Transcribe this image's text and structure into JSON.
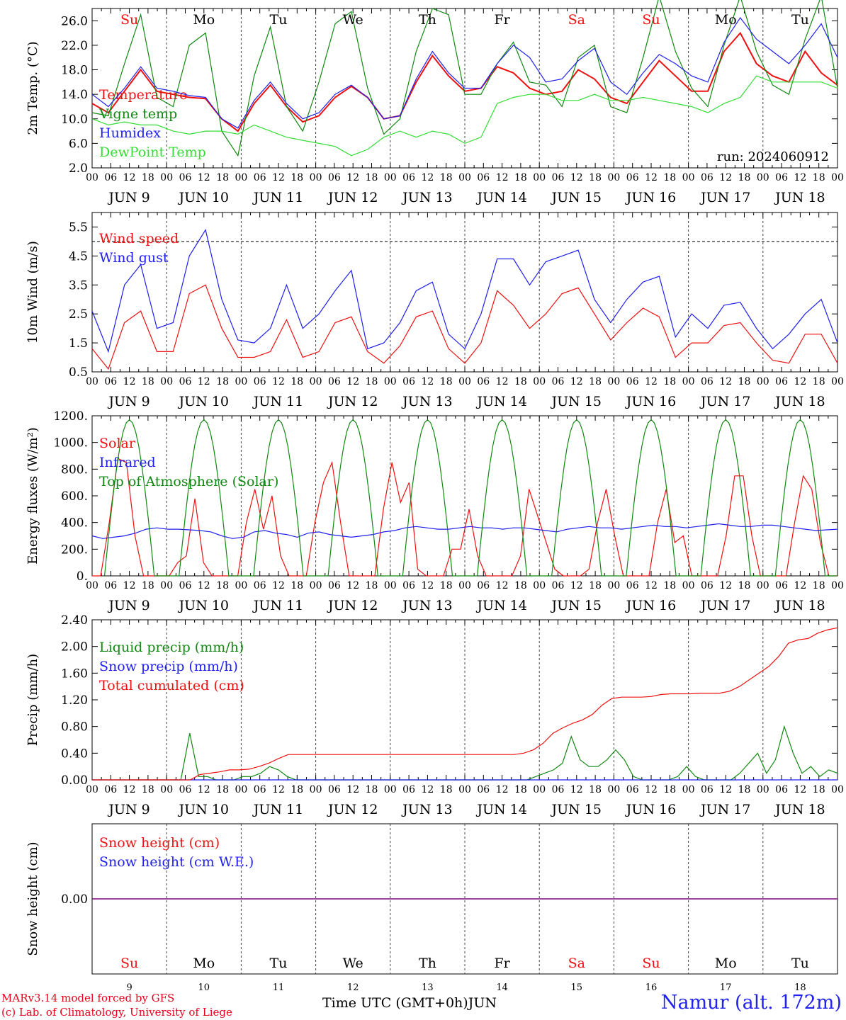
{
  "footer": {
    "credit_line1": "MARv3.14 model forced by GFS",
    "credit_line2": "(c) Lab. of Climatology, University of Liege",
    "xlabel": "Time UTC (GMT+0h)",
    "xlabel_month": "JUN",
    "station": "Namur (alt. 172m)"
  },
  "colors": {
    "red": "#ee1111",
    "green": "#118811",
    "blue": "#1f1fee",
    "lightgreen": "#33dd33",
    "purple": "#800080"
  },
  "time_axis": {
    "days": [
      "9",
      "10",
      "11",
      "12",
      "13",
      "14",
      "15",
      "16",
      "17",
      "18"
    ],
    "day_labels": [
      "JUN   9",
      "JUN 10",
      "JUN 11",
      "JUN 12",
      "JUN 13",
      "JUN 14",
      "JUN 15",
      "JUN 16",
      "JUN 17",
      "JUN 18"
    ],
    "weekdays": [
      "Su",
      "Mo",
      "Tu",
      "We",
      "Th",
      "Fr",
      "Sa",
      "Su",
      "Mo",
      "Tu"
    ],
    "weekend": [
      true,
      false,
      false,
      false,
      false,
      false,
      true,
      true,
      false,
      false
    ],
    "hour_ticks": [
      "00",
      "06",
      "12",
      "18"
    ],
    "last_tick": "00"
  },
  "chart_data": [
    {
      "type": "line",
      "ylabel": "2m Temp. (°C)",
      "ylim": [
        2,
        28
      ],
      "yticks": [
        "2.0",
        "6.0",
        "10.0",
        "14.0",
        "18.0",
        "22.0",
        "26.0"
      ],
      "ytick_values": [
        2,
        6,
        10,
        14,
        18,
        22,
        26
      ],
      "annotation": "run: 2024060912",
      "x_hours_step": 6,
      "series": [
        {
          "name": "Temperature",
          "color": "#ee1111",
          "values": [
            12.5,
            11,
            14.5,
            18,
            14.5,
            14,
            13.5,
            13.3,
            10,
            8,
            12.5,
            15.5,
            12,
            9.5,
            10.5,
            13.5,
            15.3,
            13.5,
            10,
            10.5,
            16,
            20.3,
            17,
            14.5,
            15,
            18.5,
            17.5,
            15,
            14,
            14.5,
            18,
            16.5,
            13.5,
            12.5,
            16,
            19.5,
            17,
            14.5,
            14.5,
            21,
            24,
            19,
            17,
            16,
            21,
            17.5,
            15.5
          ]
        },
        {
          "name": "Vigne temp",
          "color": "#118811",
          "values": [
            11,
            10.5,
            19,
            27,
            13.5,
            12,
            22,
            24,
            8,
            4,
            17,
            25,
            12,
            8,
            16,
            25.5,
            27.5,
            15,
            7.5,
            10,
            21,
            28,
            27,
            14,
            14,
            19,
            22.5,
            16,
            15.5,
            12,
            20,
            22,
            12,
            11,
            20,
            30,
            21,
            15,
            12,
            22,
            30,
            21,
            15.5,
            14,
            23,
            30,
            15
          ]
        },
        {
          "name": "Humidex",
          "color": "#1f1fee",
          "values": [
            14,
            12,
            15,
            18.5,
            15,
            14.5,
            13.8,
            13.5,
            10,
            8.5,
            13,
            16,
            12.5,
            10,
            11,
            14,
            15.5,
            13.5,
            10,
            10.5,
            16.5,
            21,
            17.5,
            15,
            15,
            19,
            22,
            20,
            16,
            16.5,
            19.5,
            21.5,
            16,
            14,
            17.5,
            20.5,
            19,
            17,
            16,
            22.5,
            26.5,
            23,
            21,
            19,
            22,
            25.5,
            20
          ]
        },
        {
          "name": "DewPoint Temp",
          "color": "#33dd33",
          "values": [
            10,
            9,
            9.5,
            9,
            9,
            8,
            7.5,
            8,
            8,
            7.5,
            9,
            8,
            7,
            6.5,
            6,
            5.5,
            4,
            5,
            7,
            8,
            7,
            8,
            7.5,
            6,
            7,
            12.5,
            13.5,
            14,
            14,
            13,
            13,
            14,
            13,
            13,
            13.5,
            13,
            12.5,
            12,
            11,
            12.5,
            13.5,
            17,
            16,
            16,
            16,
            16,
            15
          ]
        }
      ]
    },
    {
      "type": "line",
      "ylabel": "10m Wind (m/s)",
      "ylim": [
        0.5,
        6
      ],
      "yticks": [
        "0.5",
        "1.5",
        "2.5",
        "3.5",
        "4.5",
        "5.5"
      ],
      "ytick_values": [
        0.5,
        1.5,
        2.5,
        3.5,
        4.5,
        5.5
      ],
      "reference_line": 5,
      "x_hours_step": 6,
      "series": [
        {
          "name": "Wind speed",
          "color": "#ee1111",
          "values": [
            1.3,
            0.6,
            2.2,
            2.6,
            1.2,
            1.2,
            3.2,
            3.5,
            2,
            1,
            1,
            1.2,
            2.3,
            1,
            1.2,
            2.2,
            2.4,
            1.2,
            0.8,
            1.4,
            2.4,
            2.6,
            1.3,
            0.8,
            1.5,
            3.3,
            2.8,
            2,
            2.5,
            3.2,
            3.4,
            2.5,
            1.6,
            2.2,
            2.7,
            2.4,
            1,
            1.5,
            1.5,
            2.1,
            2.2,
            1.5,
            0.9,
            0.8,
            1.8,
            1.8,
            0.8
          ]
        },
        {
          "name": "Wind gust",
          "color": "#1f1fee",
          "values": [
            2.6,
            1.2,
            3.5,
            4.2,
            2,
            2.2,
            4.5,
            5.4,
            3,
            1.6,
            1.5,
            2,
            3.5,
            2,
            2.5,
            3.3,
            4,
            1.3,
            1.5,
            2.2,
            3.3,
            3.6,
            1.8,
            1.3,
            2.5,
            4.4,
            4.4,
            3.5,
            4.3,
            4.5,
            4.7,
            3,
            2.2,
            3,
            3.6,
            3.8,
            1.7,
            2.5,
            2,
            2.8,
            2.9,
            2,
            1.3,
            1.8,
            2.5,
            3,
            1.5
          ]
        }
      ]
    },
    {
      "type": "line",
      "ylabel": "Energy fluxes (W/m²)",
      "ylim": [
        0,
        1200
      ],
      "yticks": [
        "0.",
        "200.",
        "400.",
        "600.",
        "800.",
        "1000.",
        "1200."
      ],
      "ytick_values": [
        0,
        200,
        400,
        600,
        800,
        1000,
        1200
      ],
      "x_hours_step": 3,
      "series": [
        {
          "name": "Solar",
          "color": "#ee1111",
          "values": [
            0,
            0,
            400,
            880,
            850,
            300,
            0,
            0,
            0,
            0,
            100,
            150,
            580,
            100,
            0,
            0,
            0,
            0,
            400,
            650,
            350,
            600,
            150,
            0,
            0,
            0,
            400,
            700,
            850,
            400,
            0,
            0,
            0,
            0,
            500,
            850,
            550,
            700,
            50,
            0,
            0,
            0,
            200,
            200,
            500,
            150,
            0,
            0,
            0,
            0,
            150,
            650,
            450,
            250,
            50,
            0,
            0,
            0,
            50,
            400,
            650,
            300,
            0,
            0,
            0,
            0,
            400,
            650,
            250,
            300,
            0,
            0,
            0,
            0,
            300,
            750,
            750,
            300,
            0,
            0,
            0,
            0,
            400,
            750,
            650,
            250,
            0,
            0
          ]
        },
        {
          "name": "Infrared",
          "color": "#1f1fee",
          "values": [
            300,
            280,
            290,
            300,
            320,
            350,
            360,
            350,
            350,
            345,
            340,
            330,
            300,
            280,
            290,
            330,
            340,
            320,
            310,
            290,
            320,
            330,
            310,
            300,
            290,
            300,
            310,
            330,
            340,
            360,
            370,
            360,
            350,
            350,
            360,
            370,
            360,
            360,
            350,
            360,
            360,
            350,
            340,
            330,
            350,
            360,
            370,
            360,
            360,
            350,
            360,
            370,
            380,
            370,
            370,
            360,
            370,
            380,
            390,
            380,
            370,
            370,
            380,
            380,
            370,
            360,
            350,
            340,
            345,
            350
          ]
        },
        {
          "name": "Top of Atmosphere (Solar)",
          "color": "#118811",
          "peak": 1170,
          "values": []
        }
      ]
    },
    {
      "type": "line",
      "ylabel": "Precip (mm/h)",
      "ylim": [
        0,
        2.4
      ],
      "yticks": [
        "0.00",
        "0.40",
        "0.80",
        "1.20",
        "1.60",
        "2.00",
        "2.40"
      ],
      "ytick_values": [
        0,
        0.4,
        0.8,
        1.2,
        1.6,
        2,
        2.4
      ],
      "x_hours_step": 3,
      "series": [
        {
          "name": "Liquid precip (mm/h)",
          "color": "#118811",
          "values": [
            0,
            0,
            0,
            0,
            0,
            0,
            0,
            0,
            0,
            0,
            0,
            0.7,
            0.05,
            0.05,
            0,
            0,
            0,
            0.05,
            0.05,
            0.1,
            0.2,
            0.15,
            0.05,
            0,
            0,
            0,
            0,
            0,
            0,
            0,
            0,
            0,
            0,
            0,
            0,
            0,
            0,
            0,
            0,
            0,
            0,
            0,
            0,
            0,
            0,
            0,
            0,
            0,
            0,
            0,
            0.05,
            0.1,
            0.15,
            0.25,
            0.65,
            0.3,
            0.2,
            0.2,
            0.3,
            0.45,
            0.3,
            0.05,
            0,
            0,
            0,
            0,
            0.05,
            0.2,
            0.05,
            0,
            0,
            0,
            0,
            0.1,
            0.25,
            0.4,
            0.1,
            0.3,
            0.8,
            0.4,
            0.1,
            0.2,
            0.05,
            0.15,
            0.1
          ]
        },
        {
          "name": "Snow precip (mm/h)",
          "color": "#1f1fee",
          "values": []
        },
        {
          "name": "Total cumulated (cm)",
          "color": "#ee1111",
          "values": [
            0,
            0,
            0,
            0,
            0,
            0,
            0,
            0,
            0,
            0,
            0,
            0.08,
            0.1,
            0.12,
            0.15,
            0.15,
            0.16,
            0.2,
            0.25,
            0.32,
            0.38,
            0.38,
            0.38,
            0.38,
            0.38,
            0.38,
            0.38,
            0.38,
            0.38,
            0.38,
            0.38,
            0.38,
            0.38,
            0.38,
            0.38,
            0.38,
            0.38,
            0.38,
            0.38,
            0.38,
            0.38,
            0.38,
            0.38,
            0.38,
            0.4,
            0.45,
            0.55,
            0.7,
            0.78,
            0.85,
            0.9,
            0.98,
            1.12,
            1.22,
            1.24,
            1.24,
            1.24,
            1.25,
            1.28,
            1.29,
            1.29,
            1.29,
            1.3,
            1.3,
            1.3,
            1.33,
            1.4,
            1.5,
            1.6,
            1.7,
            1.85,
            2.05,
            2.1,
            2.12,
            2.2,
            2.25,
            2.28
          ]
        }
      ]
    },
    {
      "type": "line",
      "ylabel": "Snow height (cm)",
      "ylim": [
        -1,
        1
      ],
      "yticks": [
        "0.00"
      ],
      "ytick_values": [
        0
      ],
      "x_hours_step": 6,
      "series": [
        {
          "name": "Snow height (cm)",
          "color": "#ee1111",
          "values": []
        },
        {
          "name": "Snow height (cm W.E.)",
          "color": "#1f1fee",
          "values": []
        }
      ]
    }
  ]
}
